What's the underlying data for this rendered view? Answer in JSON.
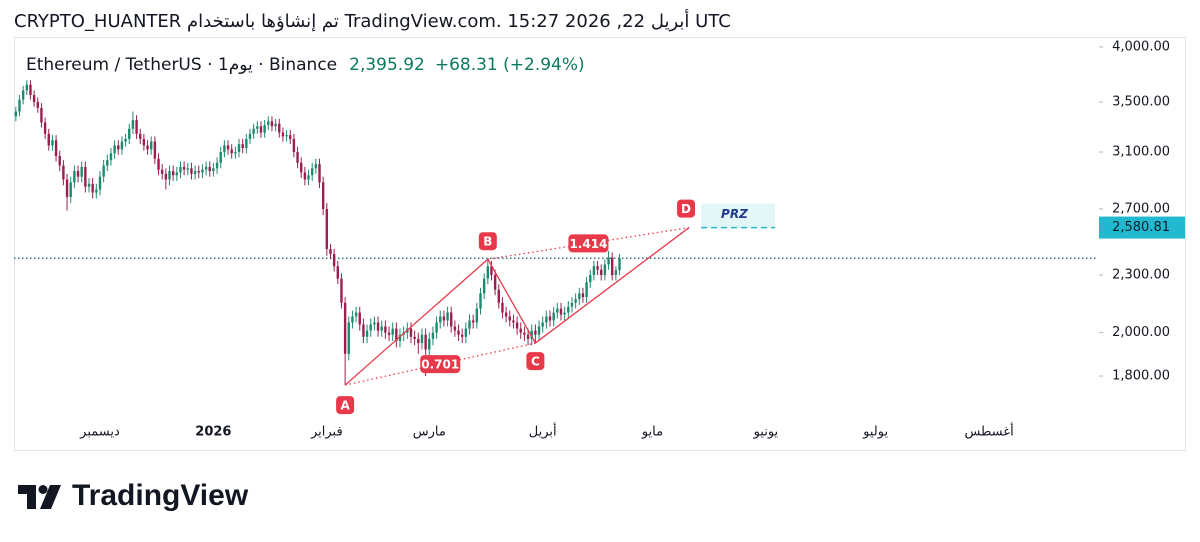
{
  "header": "CRYPTO_HUANTER تم إنشاؤها باستخدام TradingView.com. 15:27 2026 ,22 أبريل UTC",
  "footer": "TradingView",
  "chart_data": {
    "type": "candlestick",
    "symbol": "Ethereum / TetherUS · 1يوم · Binance",
    "last": {
      "value": 2395.92,
      "label": "2,395.92"
    },
    "change": "+68.31 (+2.94%)",
    "log_scale": true,
    "up_color": "#1f8a70",
    "down_color": "#9c1f52",
    "last_line_color": "#1a6b7a",
    "pattern_color": "#e8394a",
    "prz_color": "#22b8cf",
    "ylim": [
      1618,
      4098
    ],
    "yticks": [
      {
        "value": 4000,
        "label": "4,000.00"
      },
      {
        "value": 3500,
        "label": "3,500.00"
      },
      {
        "value": 3100,
        "label": "3,100.00"
      },
      {
        "value": 2700,
        "label": "2,700.00"
      },
      {
        "value": 2300,
        "label": "2,300.00"
      },
      {
        "value": 2000,
        "label": "2,000.00"
      },
      {
        "value": 1800,
        "label": "1,800.00"
      }
    ],
    "categories": [
      null,
      null,
      null,
      null,
      null,
      null,
      null,
      null,
      null,
      null,
      null,
      null,
      null,
      null,
      null,
      null,
      null,
      null,
      null,
      null,
      null,
      null,
      null,
      "ديسمبر",
      null,
      null,
      null,
      null,
      null,
      null,
      null,
      null,
      null,
      null,
      null,
      null,
      null,
      null,
      null,
      null,
      null,
      null,
      null,
      null,
      null,
      null,
      null,
      null,
      null,
      null,
      null,
      null,
      null,
      null,
      "2026",
      null,
      null,
      null,
      null,
      null,
      null,
      null,
      null,
      null,
      null,
      null,
      null,
      null,
      null,
      null,
      null,
      null,
      null,
      null,
      null,
      null,
      null,
      null,
      null,
      null,
      null,
      null,
      null,
      null,
      null,
      "فبراير",
      null,
      null,
      null,
      null,
      null,
      null,
      null,
      null,
      null,
      null,
      null,
      null,
      null,
      null,
      null,
      null,
      null,
      null,
      null,
      null,
      null,
      null,
      null,
      null,
      null,
      null,
      null,
      "مارس",
      null,
      null,
      null,
      null,
      null,
      null,
      null,
      null,
      null,
      null,
      null,
      null,
      null,
      null,
      null,
      null,
      null,
      null,
      null,
      null,
      null,
      null,
      null,
      null,
      null,
      null,
      null,
      null,
      null,
      null,
      "أبريل",
      null,
      null,
      null,
      null,
      null,
      null,
      null,
      null,
      null,
      null,
      null,
      null,
      null,
      null,
      null,
      null,
      null,
      null,
      null,
      null,
      null,
      null,
      null,
      null,
      null,
      null,
      null,
      null,
      null,
      "مايو",
      null,
      null,
      null,
      null,
      null,
      null,
      null,
      null,
      null,
      null,
      null,
      null,
      null,
      null,
      null,
      null,
      null,
      null,
      null,
      null,
      null,
      null,
      null,
      null,
      null,
      null,
      null,
      null,
      null,
      null,
      "يونيو",
      null,
      null,
      null,
      null,
      null,
      null,
      null,
      null,
      null,
      null,
      null,
      null,
      null,
      null,
      null,
      null,
      null,
      null,
      null,
      null,
      null,
      null,
      null,
      null,
      null,
      null,
      null,
      null,
      null,
      "يوليو",
      null,
      null,
      null,
      null,
      null,
      null,
      null,
      null,
      null,
      null,
      null,
      null,
      null,
      null,
      null,
      null,
      null,
      null,
      null,
      null,
      null,
      null,
      null,
      null,
      null,
      null,
      null,
      null,
      null,
      null,
      "أغسطس",
      null,
      null,
      null,
      null,
      null,
      null,
      null,
      null,
      null,
      null,
      null,
      null,
      null,
      null,
      null,
      null,
      null,
      null,
      null,
      null,
      null,
      null,
      null,
      null,
      null,
      null,
      null,
      null,
      null
    ],
    "open": [
      3380,
      3420,
      3520,
      3600,
      3650,
      3560,
      3500,
      3450,
      3330,
      3240,
      3150,
      3190,
      3070,
      3000,
      2900,
      2780,
      2880,
      2960,
      2920,
      2990,
      2850,
      2870,
      2810,
      2830,
      2920,
      3000,
      3040,
      3090,
      3150,
      3120,
      3180,
      3200,
      3280,
      3350,
      3240,
      3200,
      3150,
      3120,
      3180,
      3050,
      2970,
      2940,
      2900,
      2960,
      2930,
      2950,
      2990,
      2970,
      2980,
      2940,
      2960,
      2950,
      2970,
      2990,
      2960,
      2980,
      3020,
      3100,
      3150,
      3120,
      3090,
      3100,
      3160,
      3130,
      3200,
      3240,
      3280,
      3300,
      3250,
      3310,
      3340,
      3300,
      3320,
      3250,
      3220,
      3230,
      3200,
      3100,
      3020,
      2950,
      2900,
      2930,
      2980,
      3010,
      2880,
      2700,
      2450,
      2420,
      2350,
      2280,
      2150,
      1900,
      2050,
      2080,
      2100,
      2040,
      1980,
      2010,
      2040,
      2050,
      2010,
      2030,
      2000,
      1990,
      2020,
      1960,
      1990,
      2000,
      2020,
      1980,
      1970,
      1950,
      1990,
      1920,
      1970,
      2000,
      2050,
      2080,
      2060,
      2100,
      2030,
      2010,
      1990,
      1980,
      2020,
      2060,
      2050,
      2120,
      2200,
      2280,
      2350,
      2300,
      2220,
      2150,
      2100,
      2080,
      2060,
      2050,
      2020,
      2000,
      1990,
      1970,
      2010,
      1990,
      2030,
      2050,
      2080,
      2060,
      2100,
      2120,
      2090,
      2100,
      2130,
      2150,
      2170,
      2200,
      2180,
      2260,
      2300,
      2350,
      2330,
      2300,
      2360,
      2400,
      2300,
      2327.61,
      null,
      null,
      null,
      null,
      null,
      null,
      null,
      null,
      null,
      null,
      null,
      null,
      null,
      null,
      null,
      null,
      null,
      null,
      null,
      null,
      null,
      null,
      null,
      null,
      null,
      null,
      null,
      null,
      null,
      null,
      null,
      null,
      null,
      null,
      null,
      null,
      null,
      null,
      null,
      null,
      null,
      null,
      null,
      null,
      null,
      null,
      null,
      null,
      null,
      null,
      null,
      null,
      null,
      null,
      null,
      null,
      null,
      null,
      null,
      null,
      null,
      null,
      null,
      null,
      null,
      null,
      null,
      null,
      null,
      null,
      null,
      null,
      null,
      null,
      null,
      null,
      null,
      null,
      null,
      null,
      null,
      null,
      null,
      null,
      null,
      null,
      null,
      null,
      null,
      null,
      null,
      null,
      null,
      null,
      null,
      null,
      null,
      null,
      null,
      null,
      null,
      null,
      null,
      null,
      null,
      null,
      null,
      null,
      null,
      null,
      null,
      null,
      null,
      null,
      null,
      null,
      null,
      null,
      null,
      null,
      null,
      null,
      null,
      null,
      null,
      null,
      null,
      null,
      null,
      null
    ],
    "high": [
      3460,
      3560,
      3640,
      3690,
      3690,
      3600,
      3540,
      3490,
      3370,
      3280,
      3230,
      3230,
      3110,
      3040,
      2940,
      2920,
      3000,
      3000,
      3030,
      3030,
      2910,
      2910,
      2870,
      2960,
      3040,
      3080,
      3130,
      3190,
      3190,
      3220,
      3240,
      3320,
      3420,
      3390,
      3280,
      3240,
      3190,
      3220,
      3220,
      3090,
      3010,
      2980,
      3000,
      3000,
      2990,
      3030,
      3030,
      3020,
      3020,
      3000,
      3000,
      3010,
      3030,
      3030,
      3020,
      3060,
      3140,
      3190,
      3190,
      3160,
      3140,
      3200,
      3200,
      3240,
      3280,
      3320,
      3340,
      3340,
      3350,
      3380,
      3380,
      3360,
      3360,
      3290,
      3270,
      3270,
      3240,
      3140,
      3060,
      2990,
      2970,
      3020,
      3050,
      3050,
      2920,
      2740,
      2480,
      2450,
      2380,
      2310,
      2180,
      2080,
      2110,
      2130,
      2130,
      2070,
      2040,
      2070,
      2080,
      2080,
      2060,
      2060,
      2030,
      2050,
      2050,
      2020,
      2030,
      2050,
      2050,
      2010,
      2000,
      2020,
      2020,
      2000,
      2030,
      2080,
      2110,
      2110,
      2130,
      2130,
      2060,
      2040,
      2020,
      2050,
      2090,
      2090,
      2150,
      2230,
      2310,
      2390,
      2380,
      2330,
      2250,
      2180,
      2130,
      2110,
      2090,
      2080,
      2050,
      2030,
      2020,
      2040,
      2040,
      2060,
      2080,
      2110,
      2110,
      2130,
      2150,
      2150,
      2130,
      2160,
      2180,
      2200,
      2230,
      2230,
      2290,
      2330,
      2380,
      2380,
      2360,
      2390,
      2440,
      2430,
      2350,
      2420,
      null,
      null,
      null,
      null,
      null,
      null,
      null,
      null,
      null,
      null,
      null,
      null,
      null,
      null,
      null,
      null,
      null,
      null,
      null,
      null,
      null,
      null,
      null,
      null,
      null,
      null,
      null,
      null,
      null,
      null,
      null,
      null,
      null,
      null,
      null,
      null,
      null,
      null,
      null,
      null,
      null,
      null,
      null,
      null,
      null,
      null,
      null,
      null,
      null,
      null,
      null,
      null,
      null,
      null,
      null,
      null,
      null,
      null,
      null,
      null,
      null,
      null,
      null,
      null,
      null,
      null,
      null,
      null,
      null,
      null,
      null,
      null,
      null,
      null,
      null,
      null,
      null,
      null,
      null,
      null,
      null,
      null,
      null,
      null,
      null,
      null,
      null,
      null,
      null,
      null,
      null,
      null,
      null,
      null,
      null,
      null,
      null,
      null,
      null,
      null,
      null,
      null,
      null,
      null,
      null,
      null,
      null,
      null,
      null,
      null,
      null,
      null,
      null,
      null,
      null,
      null,
      null,
      null,
      null,
      null,
      null,
      null,
      null,
      null,
      null,
      null,
      null,
      null,
      null,
      null
    ],
    "low": [
      3340,
      3380,
      3480,
      3560,
      3520,
      3460,
      3410,
      3290,
      3200,
      3110,
      3110,
      3030,
      2960,
      2860,
      2690,
      2740,
      2840,
      2880,
      2880,
      2810,
      2810,
      2770,
      2770,
      2790,
      2880,
      2960,
      3000,
      3050,
      3080,
      3080,
      3140,
      3160,
      3240,
      3200,
      3160,
      3110,
      3080,
      3080,
      3010,
      2930,
      2900,
      2830,
      2860,
      2890,
      2890,
      2910,
      2930,
      2930,
      2900,
      2900,
      2910,
      2910,
      2930,
      2920,
      2920,
      2940,
      2980,
      3060,
      3080,
      3050,
      3050,
      3060,
      3090,
      3090,
      3160,
      3200,
      3240,
      3210,
      3210,
      3270,
      3260,
      3260,
      3210,
      3180,
      3180,
      3160,
      3060,
      2980,
      2910,
      2860,
      2860,
      2890,
      2940,
      2840,
      2660,
      2410,
      2390,
      2320,
      2250,
      2120,
      1761,
      1870,
      2020,
      2050,
      2010,
      1950,
      1950,
      1980,
      2010,
      1980,
      1980,
      1970,
      1960,
      1960,
      1930,
      1930,
      1960,
      1970,
      1950,
      1940,
      1900,
      1920,
      1800,
      1890,
      1940,
      1970,
      2020,
      2030,
      2030,
      2000,
      1980,
      1960,
      1950,
      1950,
      1990,
      2020,
      2020,
      2090,
      2170,
      2250,
      2270,
      2190,
      2120,
      2070,
      2050,
      2030,
      2020,
      1990,
      1970,
      1960,
      1940,
      1940,
      1950,
      1960,
      2000,
      2020,
      2030,
      2030,
      2070,
      2060,
      2060,
      2070,
      2100,
      2120,
      2140,
      2150,
      2150,
      2230,
      2270,
      2300,
      2270,
      2270,
      2330,
      2270,
      2270,
      2300,
      null,
      null,
      null,
      null,
      null,
      null,
      null,
      null,
      null,
      null,
      null,
      null,
      null,
      null,
      null,
      null,
      null,
      null,
      null,
      null,
      null,
      null,
      null,
      null,
      null,
      null,
      null,
      null,
      null,
      null,
      null,
      null,
      null,
      null,
      null,
      null,
      null,
      null,
      null,
      null,
      null,
      null,
      null,
      null,
      null,
      null,
      null,
      null,
      null,
      null,
      null,
      null,
      null,
      null,
      null,
      null,
      null,
      null,
      null,
      null,
      null,
      null,
      null,
      null,
      null,
      null,
      null,
      null,
      null,
      null,
      null,
      null,
      null,
      null,
      null,
      null,
      null,
      null,
      null,
      null,
      null,
      null,
      null,
      null,
      null,
      null,
      null,
      null,
      null,
      null,
      null,
      null,
      null,
      null,
      null,
      null,
      null,
      null,
      null,
      null,
      null,
      null,
      null,
      null,
      null,
      null,
      null,
      null,
      null,
      null,
      null,
      null,
      null,
      null,
      null,
      null,
      null,
      null,
      null,
      null,
      null,
      null,
      null,
      null,
      null,
      null,
      null,
      null,
      null,
      null
    ],
    "close": [
      3420,
      3520,
      3600,
      3650,
      3560,
      3500,
      3450,
      3330,
      3240,
      3150,
      3190,
      3070,
      3000,
      2900,
      2780,
      2880,
      2960,
      2920,
      2990,
      2850,
      2870,
      2810,
      2830,
      2920,
      3000,
      3040,
      3090,
      3150,
      3120,
      3180,
      3200,
      3280,
      3350,
      3240,
      3200,
      3150,
      3120,
      3180,
      3050,
      2970,
      2940,
      2900,
      2960,
      2930,
      2950,
      2990,
      2970,
      2980,
      2940,
      2960,
      2950,
      2970,
      2990,
      2960,
      2980,
      3020,
      3100,
      3150,
      3120,
      3090,
      3100,
      3160,
      3130,
      3200,
      3240,
      3280,
      3300,
      3250,
      3310,
      3340,
      3300,
      3320,
      3250,
      3220,
      3230,
      3200,
      3100,
      3020,
      2950,
      2900,
      2930,
      2980,
      3010,
      2880,
      2700,
      2450,
      2420,
      2350,
      2280,
      2150,
      1900,
      2050,
      2080,
      2100,
      2040,
      1980,
      2010,
      2040,
      2050,
      2010,
      2030,
      2000,
      1990,
      2020,
      1960,
      1990,
      2000,
      2020,
      1980,
      1970,
      1950,
      1990,
      1920,
      1970,
      2000,
      2050,
      2080,
      2060,
      2100,
      2030,
      2010,
      1990,
      1980,
      2020,
      2060,
      2050,
      2120,
      2200,
      2280,
      2350,
      2300,
      2220,
      2150,
      2100,
      2080,
      2060,
      2050,
      2020,
      2000,
      1990,
      1970,
      2010,
      1990,
      2030,
      2050,
      2080,
      2060,
      2100,
      2120,
      2090,
      2100,
      2130,
      2150,
      2170,
      2200,
      2180,
      2260,
      2300,
      2350,
      2330,
      2300,
      2360,
      2400,
      2300,
      2327.61,
      2395.92,
      null,
      null,
      null,
      null,
      null,
      null,
      null,
      null,
      null,
      null,
      null,
      null,
      null,
      null,
      null,
      null,
      null,
      null,
      null,
      null,
      null,
      null,
      null,
      null,
      null,
      null,
      null,
      null,
      null,
      null,
      null,
      null,
      null,
      null,
      null,
      null,
      null,
      null,
      null,
      null,
      null,
      null,
      null,
      null,
      null,
      null,
      null,
      null,
      null,
      null,
      null,
      null,
      null,
      null,
      null,
      null,
      null,
      null,
      null,
      null,
      null,
      null,
      null,
      null,
      null,
      null,
      null,
      null,
      null,
      null,
      null,
      null,
      null,
      null,
      null,
      null,
      null,
      null,
      null,
      null,
      null,
      null,
      null,
      null,
      null,
      null,
      null,
      null,
      null,
      null,
      null,
      null,
      null,
      null,
      null,
      null,
      null,
      null,
      null,
      null,
      null,
      null,
      null,
      null,
      null,
      null,
      null,
      null,
      null,
      null,
      null,
      null,
      null,
      null,
      null,
      null,
      null,
      null,
      null,
      null,
      null,
      null,
      null,
      null,
      null,
      null,
      null,
      null,
      null,
      null
    ],
    "pattern": {
      "points": [
        {
          "label": "A",
          "index": 90,
          "price": 1761
        },
        {
          "label": "B",
          "index": 129,
          "price": 2390
        },
        {
          "label": "C",
          "index": 142,
          "price": 1950
        },
        {
          "label": "D",
          "index": 184,
          "price": {
            "value": 2580.81,
            "label": "2,580.81"
          }
        }
      ],
      "ratios": [
        0.701,
        1.414
      ],
      "zone": "PRZ"
    }
  }
}
